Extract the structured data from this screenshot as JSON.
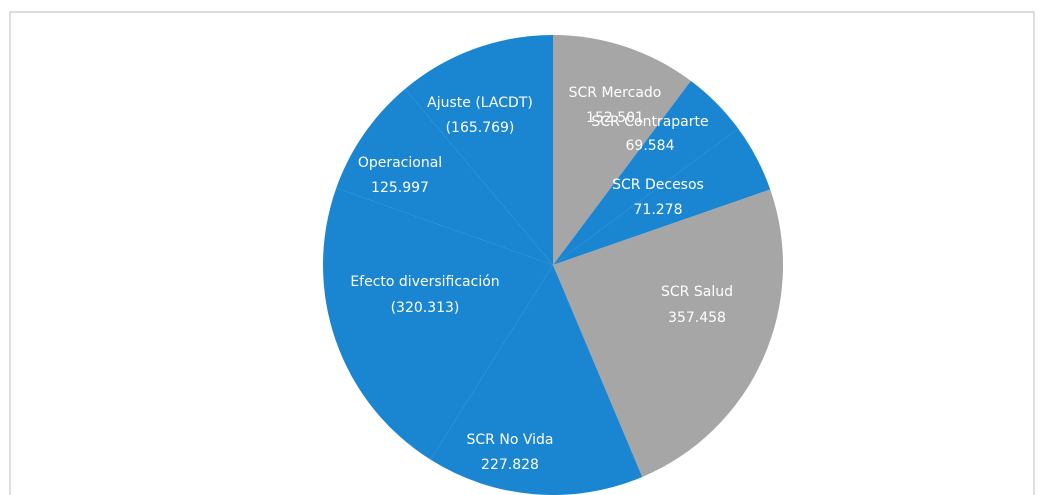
{
  "chart_data": {
    "type": "pie",
    "categories": [
      "SCR Mercado",
      "SCR Contraparte",
      "SCR Decesos",
      "SCR Salud",
      "SCR No Vida",
      "Efecto diversificación",
      "Operacional",
      "Ajuste (LACDT)"
    ],
    "values": [
      152501,
      69584,
      71278,
      357458,
      227828,
      -320313,
      125997,
      -165769
    ],
    "value_labels": [
      "152.501",
      "69.584",
      "71.278",
      "357.458",
      "227.828",
      "(320.313)",
      "125.997",
      "(165.769)"
    ],
    "colors": [
      "#a6a6a6",
      "#1a85d0",
      "#1a85d0",
      "#a6a6a6",
      "#1a85d0",
      "#1a85d0",
      "#1a85d0",
      "#1a85d0"
    ]
  }
}
